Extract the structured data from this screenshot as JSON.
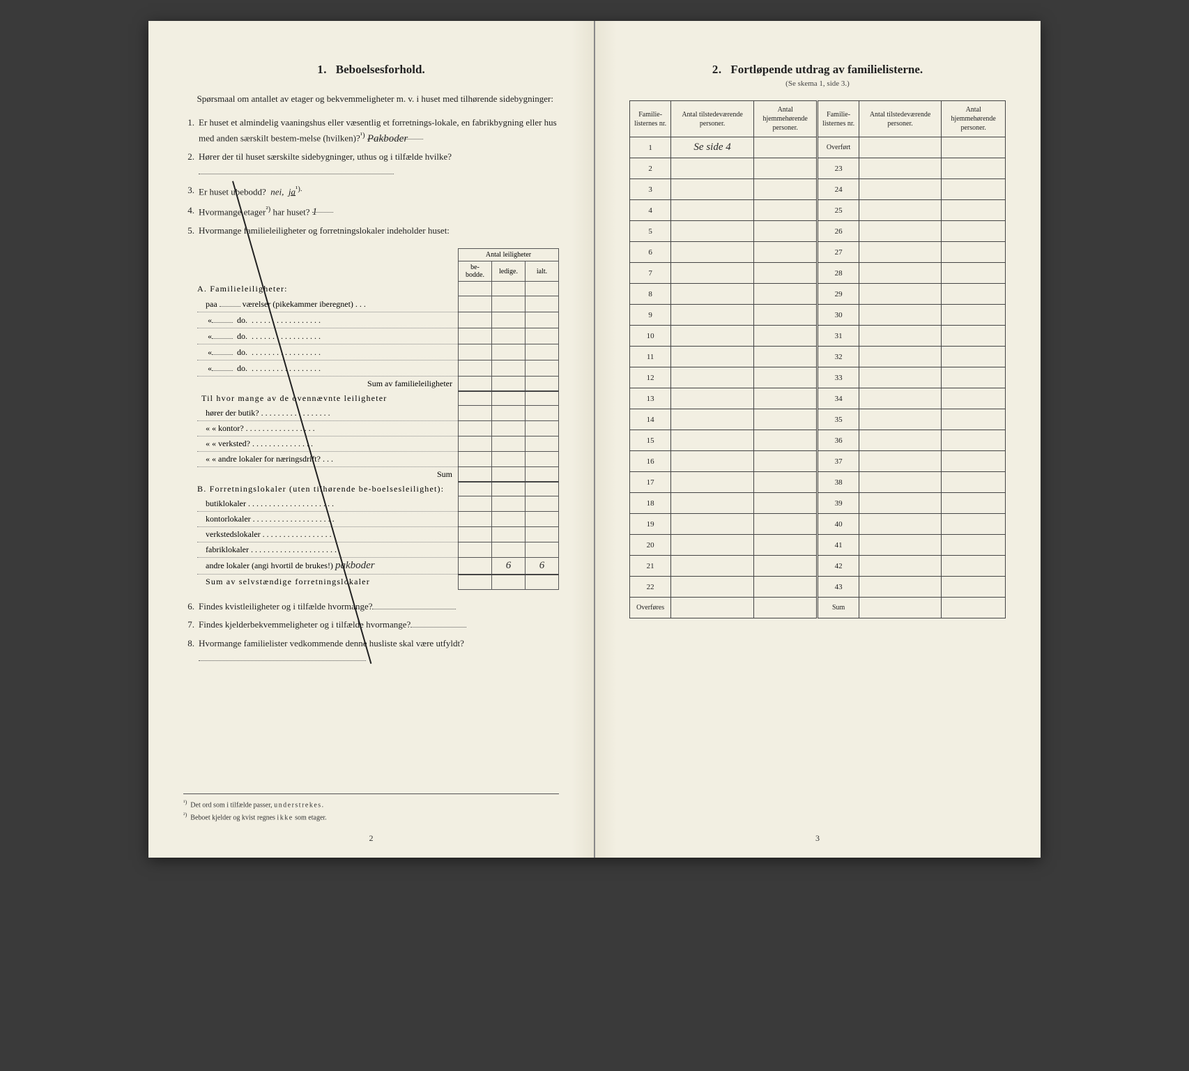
{
  "left": {
    "section_number": "1.",
    "section_title": "Beboelsesforhold.",
    "intro": "Spørsmaal om antallet av etager og bekvemmeligheter m. v. i huset med tilhørende sidebygninger:",
    "q1_pre": "Er huset et almindelig vaaningshus eller væsentlig et forretnings-lokale, en fabrikbygning eller hus med anden særskilt bestem-melse (hvilken)?",
    "q1_sup": "¹)",
    "q1_hand": "Pakboder",
    "q2": "Hører der til huset særskilte sidebygninger, uthus og i tilfælde hvilke?",
    "q3_pre": "Er huset ubebodd?",
    "q3_nei": "nei,",
    "q3_ja": "ja",
    "q3_sup": "¹).",
    "q4_pre": "Hvormange etager",
    "q4_sup": "²)",
    "q4_post": " har huset?",
    "q4_hand": "1",
    "q5": "Hvormange familieleiligheter og forretningslokaler indeholder huset:",
    "mini_header_group": "Antal leiligheter",
    "mini_h1": "be-bodde.",
    "mini_h2": "ledige.",
    "mini_h3": "ialt.",
    "A_label": "A. Familieleiligheter:",
    "A_line1_pre": "paa",
    "A_line1_post": "værelser (pikekammer iberegnet) . . .",
    "A_do": "do.",
    "A_sum": "Sum av familieleiligheter",
    "A_sub_intro": "Til hvor mange av de ovennævnte leiligheter",
    "A_sub1": "hører der butik?",
    "A_sub2": "«    « kontor?",
    "A_sub3": "«    « verksted?",
    "A_sub4": "«    « andre lokaler for næringsdrift?",
    "A_sub_sum": "Sum",
    "B_label": "B. Forretningslokaler (uten tilhørende be-boelsesleilighet):",
    "B_line1": "butiklokaler",
    "B_line2": "kontorlokaler",
    "B_line3": "verkstedslokaler",
    "B_line4": "fabriklokaler",
    "B_line5_pre": "andre lokaler (angi hvortil de brukes!)",
    "B_line5_hand": "pakboder",
    "B_val_ledige": "6",
    "B_val_ialt": "6",
    "B_sum": "Sum av selvstændige forretningslokaler",
    "q6": "Findes kvistleiligheter og i tilfælde hvormange?",
    "q7": "Findes kjelderbekvemmeligheter og i tilfælde hvormange?",
    "q8": "Hvormange familielister vedkommende denne husliste skal være utfyldt?",
    "fn1_sup": "¹)",
    "fn1_text_pre": "Det ord som i tilfælde passer, ",
    "fn1_text_spaced": "understrekes.",
    "fn2_sup": "²)",
    "fn2_text_pre": "Beboet kjelder og kvist regnes ",
    "fn2_text_spaced": "ikke",
    "fn2_text_post": " som etager.",
    "page_number": "2"
  },
  "right": {
    "section_number": "2.",
    "section_title": "Fortløpende utdrag av familielisterne.",
    "subtitle": "(Se skema 1, side 3.)",
    "col_nr": "Familie-listernes nr.",
    "col_a": "Antal tilstedeværende personer.",
    "col_b": "Antal hjemmehørende personer.",
    "rows_left": [
      "1",
      "2",
      "3",
      "4",
      "5",
      "6",
      "7",
      "8",
      "9",
      "10",
      "11",
      "12",
      "13",
      "14",
      "15",
      "16",
      "17",
      "18",
      "19",
      "20",
      "21",
      "22"
    ],
    "rows_left_last": "Overføres",
    "rows_right_first": "Overført",
    "rows_right": [
      "23",
      "24",
      "25",
      "26",
      "27",
      "28",
      "29",
      "30",
      "31",
      "32",
      "33",
      "34",
      "35",
      "36",
      "37",
      "38",
      "39",
      "40",
      "41",
      "42",
      "43"
    ],
    "rows_right_last": "Sum",
    "row1_mark": "Se side 4",
    "page_number": "3",
    "colors": {
      "paper": "#f2efe2",
      "ink": "#222222",
      "border": "#444444"
    }
  }
}
